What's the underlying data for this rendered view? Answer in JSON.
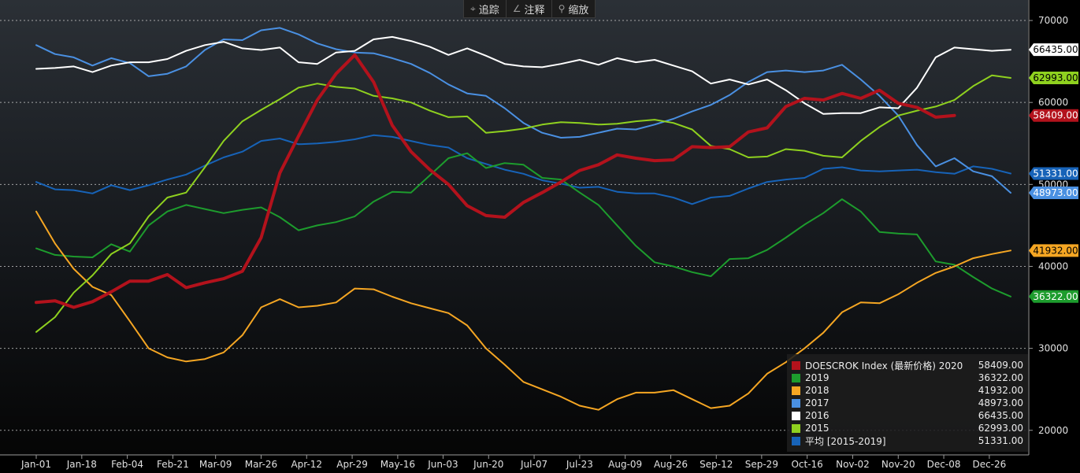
{
  "toolbar": {
    "items": [
      {
        "icon": "crosshair-icon",
        "glyph": "⌖",
        "label": "追踪"
      },
      {
        "icon": "pencil-icon",
        "glyph": "∠",
        "label": "注释"
      },
      {
        "icon": "magnifier-icon",
        "glyph": "⚲",
        "label": "缩放"
      }
    ]
  },
  "chart_data": {
    "type": "line",
    "title": "",
    "xlabel": "",
    "ylabel": "",
    "ylim": [
      17000,
      72500
    ],
    "yticks": [
      20000,
      30000,
      40000,
      50000,
      60000,
      70000
    ],
    "ytick_labels": [
      "20000",
      "30000",
      "40000",
      "50000",
      "60000",
      "70000"
    ],
    "grid": true,
    "legend_position": "bottom-right",
    "x_count": 53,
    "x_ticks": [
      {
        "index": 0,
        "label": "Jan-01"
      },
      {
        "index": 2.43,
        "label": "Jan-18"
      },
      {
        "index": 4.86,
        "label": "Feb-04"
      },
      {
        "index": 7.29,
        "label": "Feb-21"
      },
      {
        "index": 9.57,
        "label": "Mar-09"
      },
      {
        "index": 12,
        "label": "Mar-26"
      },
      {
        "index": 14.43,
        "label": "Apr-12"
      },
      {
        "index": 16.86,
        "label": "Apr-29"
      },
      {
        "index": 19.29,
        "label": "May-16"
      },
      {
        "index": 21.71,
        "label": "Jun-03"
      },
      {
        "index": 24.14,
        "label": "Jun-20"
      },
      {
        "index": 26.57,
        "label": "Jul-07"
      },
      {
        "index": 29,
        "label": "Jul-23"
      },
      {
        "index": 31.43,
        "label": "Aug-09"
      },
      {
        "index": 33.86,
        "label": "Aug-26"
      },
      {
        "index": 36.29,
        "label": "Sep-12"
      },
      {
        "index": 38.71,
        "label": "Sep-29"
      },
      {
        "index": 41.14,
        "label": "Oct-16"
      },
      {
        "index": 43.57,
        "label": "Nov-02"
      },
      {
        "index": 46,
        "label": "Nov-20"
      },
      {
        "index": 48.43,
        "label": "Dec-08"
      },
      {
        "index": 50.86,
        "label": "Dec-26"
      }
    ],
    "series": [
      {
        "name": "平均 [2015-2019]",
        "color": "#1763b8",
        "width": 2,
        "last_label": "51331.00",
        "values": [
          50300,
          49400,
          49300,
          48900,
          49900,
          49300,
          49900,
          50600,
          51200,
          52300,
          53300,
          54000,
          55300,
          55600,
          54900,
          55000,
          55200,
          55500,
          56000,
          55800,
          55300,
          54800,
          54500,
          53200,
          52500,
          51800,
          51300,
          50500,
          50100,
          49600,
          49700,
          49100,
          48900,
          48900,
          48400,
          47600,
          48400,
          48600,
          49500,
          50300,
          50600,
          50800,
          51900,
          52100,
          51700,
          51600,
          51700,
          51800,
          51500,
          51300,
          52200,
          51900,
          51331
        ]
      },
      {
        "name": "2019",
        "color": "#1d9c2d",
        "width": 2,
        "last_label": "36322.00",
        "values": [
          42200,
          41400,
          41200,
          41100,
          42700,
          41800,
          45000,
          46700,
          47500,
          47000,
          46500,
          46900,
          47200,
          46000,
          44400,
          45000,
          45400,
          46100,
          47900,
          49100,
          49000,
          51100,
          53200,
          53800,
          52000,
          52600,
          52400,
          50800,
          50600,
          49000,
          47500,
          45000,
          42500,
          40500,
          40000,
          39300,
          38800,
          40900,
          41000,
          42000,
          43500,
          45100,
          46500,
          48200,
          46700,
          44200,
          44000,
          43900,
          40600,
          40200,
          38700,
          37300,
          36322
        ]
      },
      {
        "name": "2018",
        "color": "#f5a623",
        "width": 2,
        "last_label": "41932.00",
        "values": [
          46700,
          42800,
          39700,
          37500,
          36500,
          33300,
          30000,
          28900,
          28400,
          28700,
          29500,
          31600,
          35000,
          36000,
          35000,
          35200,
          35600,
          37300,
          37200,
          36300,
          35500,
          34900,
          34300,
          32800,
          30000,
          28000,
          25900,
          25000,
          24100,
          23000,
          22500,
          23800,
          24600,
          24600,
          24900,
          23800,
          22700,
          23000,
          24500,
          26900,
          28300,
          30000,
          31900,
          34400,
          35600,
          35500,
          36600,
          38000,
          39200,
          40000,
          41000,
          41500,
          41932
        ]
      },
      {
        "name": "2017",
        "color": "#4a90e2",
        "width": 2,
        "last_label": "48973.00",
        "values": [
          67000,
          65900,
          65500,
          64500,
          65400,
          64800,
          63200,
          63500,
          64400,
          66400,
          67700,
          67600,
          68800,
          69100,
          68300,
          67200,
          66500,
          66100,
          66000,
          65400,
          64700,
          63600,
          62200,
          61100,
          60800,
          59300,
          57500,
          56300,
          55700,
          55800,
          56300,
          56800,
          56700,
          57300,
          58000,
          58900,
          59700,
          60900,
          62500,
          63700,
          63900,
          63700,
          63900,
          64600,
          62800,
          60800,
          58400,
          54800,
          52200,
          53200,
          51600,
          51000,
          48973
        ]
      },
      {
        "name": "2016",
        "color": "#ffffff",
        "width": 2,
        "last_label": "66435.00",
        "values": [
          64100,
          64200,
          64400,
          63700,
          64500,
          64900,
          64900,
          65300,
          66300,
          67000,
          67400,
          66600,
          66400,
          66700,
          64900,
          64700,
          66100,
          66300,
          67700,
          68000,
          67500,
          66800,
          65800,
          66600,
          65700,
          64700,
          64400,
          64300,
          64700,
          65200,
          64600,
          65400,
          64900,
          65200,
          64500,
          63800,
          62300,
          62800,
          62200,
          62800,
          61500,
          59900,
          58600,
          58700,
          58700,
          59400,
          59300,
          61800,
          65500,
          66700,
          66500,
          66300,
          66435
        ]
      },
      {
        "name": "2015",
        "color": "#8fd11f",
        "width": 2,
        "last_label": "62993.00",
        "values": [
          32000,
          33800,
          36800,
          38900,
          41500,
          42800,
          46100,
          48400,
          49000,
          52100,
          55300,
          57700,
          59100,
          60400,
          61800,
          62300,
          61900,
          61700,
          60800,
          60500,
          60000,
          59000,
          58200,
          58300,
          56300,
          56500,
          56800,
          57300,
          57600,
          57500,
          57300,
          57400,
          57700,
          57900,
          57500,
          56700,
          54700,
          54300,
          53300,
          53400,
          54300,
          54100,
          53500,
          53300,
          55300,
          57000,
          58400,
          59000,
          59500,
          60300,
          62000,
          63300,
          62993
        ]
      },
      {
        "name": "DOESCROK Index (最新价格) 2020",
        "color": "#b3121c",
        "width": 4,
        "last_label": "58409.00",
        "values": [
          35600,
          35800,
          35000,
          35700,
          36900,
          38200,
          38200,
          39000,
          37400,
          38000,
          38500,
          39400,
          43500,
          51400,
          55900,
          60300,
          63500,
          65800,
          62500,
          57200,
          54000,
          51800,
          50000,
          47400,
          46200,
          46000,
          47800,
          49000,
          50300,
          51700,
          52400,
          53600,
          53200,
          52900,
          53000,
          54600,
          54500,
          54600,
          56400,
          56900,
          59500,
          60500,
          60300,
          61100,
          60500,
          61500,
          59900,
          59400,
          58200,
          58409
        ]
      }
    ]
  },
  "legend": {
    "rows": [
      {
        "name": "DOESCROK Index (最新价格) 2020",
        "value": "58409.00",
        "color": "#b3121c"
      },
      {
        "name": "2019",
        "value": "36322.00",
        "color": "#1d9c2d"
      },
      {
        "name": "2018",
        "value": "41932.00",
        "color": "#f5a623"
      },
      {
        "name": "2017",
        "value": "48973.00",
        "color": "#4a90e2"
      },
      {
        "name": "2016",
        "value": "66435.00",
        "color": "#ffffff"
      },
      {
        "name": "2015",
        "value": "62993.00",
        "color": "#8fd11f"
      },
      {
        "name": "平均 [2015-2019]",
        "value": "51331.00",
        "color": "#1763b8"
      }
    ]
  },
  "label_colors": {
    "#b3121c": {
      "bg": "#b3121c",
      "fg": "#ffffff"
    },
    "#1d9c2d": {
      "bg": "#1d9c2d",
      "fg": "#ffffff"
    },
    "#f5a623": {
      "bg": "#f5a623",
      "fg": "#000000"
    },
    "#4a90e2": {
      "bg": "#4a90e2",
      "fg": "#ffffff"
    },
    "#ffffff": {
      "bg": "#ffffff",
      "fg": "#000000"
    },
    "#8fd11f": {
      "bg": "#8fd11f",
      "fg": "#000000"
    },
    "#1763b8": {
      "bg": "#1763b8",
      "fg": "#ffffff"
    }
  }
}
